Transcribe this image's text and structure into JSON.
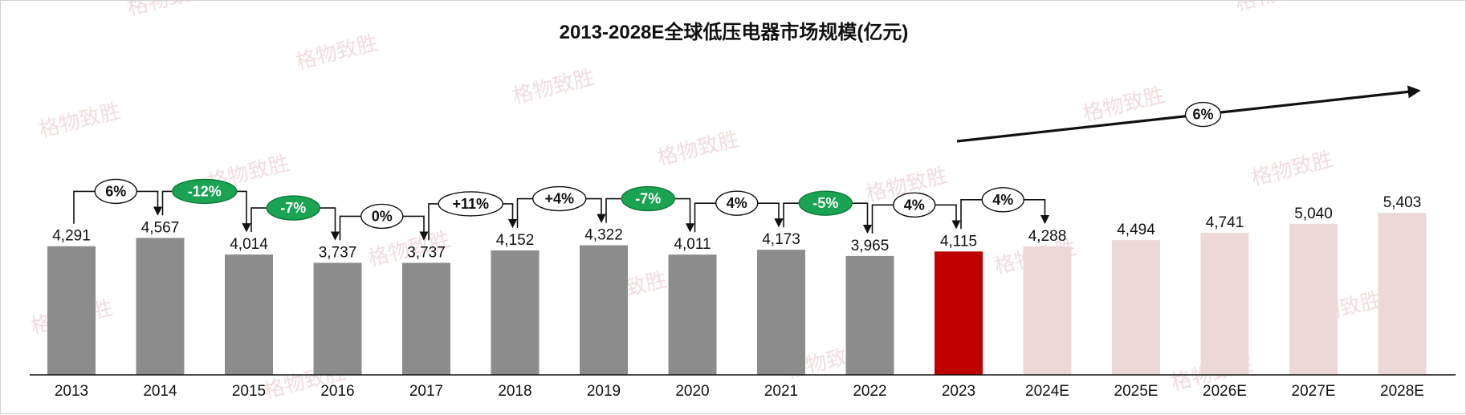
{
  "watermark": "格物致胜",
  "colors": {
    "historical": "#8c8c8c",
    "current": "#c00000",
    "forecast": "#ecd8d8",
    "negative_badge": "#1aa352",
    "connector": "#111111"
  },
  "chart_data": {
    "type": "bar",
    "title": "2013-2028E全球低压电器市场规模(亿元)",
    "xlabel": "",
    "ylabel": "",
    "ylim": [
      0,
      6200
    ],
    "grid": false,
    "legend": "none",
    "categories": [
      "2013",
      "2014",
      "2015",
      "2016",
      "2017",
      "2018",
      "2019",
      "2020",
      "2021",
      "2022",
      "2023",
      "2024E",
      "2025E",
      "2026E",
      "2027E",
      "2028E"
    ],
    "values": [
      4291,
      4567,
      4014,
      3737,
      3737,
      4152,
      4322,
      4011,
      4173,
      3965,
      4115,
      4288,
      4494,
      4741,
      5040,
      5403
    ],
    "value_labels": [
      "4,291",
      "4,567",
      "4,014",
      "3,737",
      "3,737",
      "4,152",
      "4,322",
      "4,011",
      "4,173",
      "3,965",
      "4,115",
      "4,288",
      "4,494",
      "4,741",
      "5,040",
      "5,403"
    ],
    "bar_kind": [
      "historical",
      "historical",
      "historical",
      "historical",
      "historical",
      "historical",
      "historical",
      "historical",
      "historical",
      "historical",
      "current",
      "forecast",
      "forecast",
      "forecast",
      "forecast",
      "forecast"
    ],
    "growth_annotations": [
      {
        "from": "2013",
        "to": "2014",
        "label": "6%",
        "negative": false
      },
      {
        "from": "2014",
        "to": "2015",
        "label": "-12%",
        "negative": true
      },
      {
        "from": "2015",
        "to": "2016",
        "label": "-7%",
        "negative": true
      },
      {
        "from": "2016",
        "to": "2017",
        "label": "0%",
        "negative": false
      },
      {
        "from": "2017",
        "to": "2018",
        "label": "+11%",
        "negative": false
      },
      {
        "from": "2018",
        "to": "2019",
        "label": "+4%",
        "negative": false
      },
      {
        "from": "2019",
        "to": "2020",
        "label": "-7%",
        "negative": true
      },
      {
        "from": "2020",
        "to": "2021",
        "label": "4%",
        "negative": false
      },
      {
        "from": "2021",
        "to": "2022",
        "label": "-5%",
        "negative": true
      },
      {
        "from": "2022",
        "to": "2023",
        "label": "4%",
        "negative": false
      },
      {
        "from": "2023",
        "to": "2024E",
        "label": "4%",
        "negative": false
      }
    ],
    "trend_annotation": {
      "from": "2023",
      "to": "2028E",
      "label": "6%"
    }
  }
}
